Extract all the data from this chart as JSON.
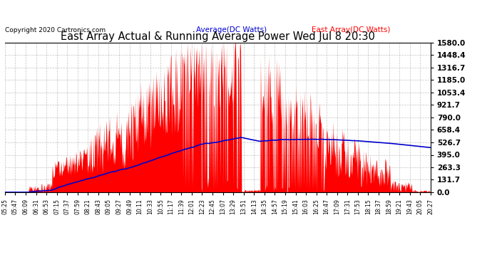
{
  "title": "East Array Actual & Running Average Power Wed Jul 8 20:30",
  "copyright": "Copyright 2020 Cartronics.com",
  "legend_avg": "Average(DC Watts)",
  "legend_east": "East Array(DC Watts)",
  "ymin": 0.0,
  "ymax": 1580.0,
  "yticks": [
    0.0,
    131.7,
    263.3,
    395.0,
    526.7,
    658.4,
    790.0,
    921.7,
    1053.4,
    1185.0,
    1316.7,
    1448.4,
    1580.0
  ],
  "bg_color": "#ffffff",
  "grid_color": "#aaaaaa",
  "east_color": "#ff0000",
  "avg_color": "#0000cc",
  "title_color": "#000000",
  "copyright_color": "#000000",
  "legend_avg_color": "#0000cc",
  "legend_east_color": "#ff0000",
  "xtick_labels": [
    "05:25",
    "05:47",
    "06:09",
    "06:31",
    "06:53",
    "07:15",
    "07:37",
    "07:59",
    "08:21",
    "08:43",
    "09:05",
    "09:27",
    "09:49",
    "10:11",
    "10:33",
    "10:55",
    "11:17",
    "11:39",
    "12:01",
    "12:23",
    "12:45",
    "13:07",
    "13:29",
    "13:51",
    "14:13",
    "14:35",
    "14:57",
    "15:19",
    "15:41",
    "16:03",
    "16:25",
    "16:47",
    "17:09",
    "17:31",
    "17:53",
    "18:15",
    "18:37",
    "18:59",
    "19:21",
    "19:43",
    "20:05",
    "20:27"
  ]
}
